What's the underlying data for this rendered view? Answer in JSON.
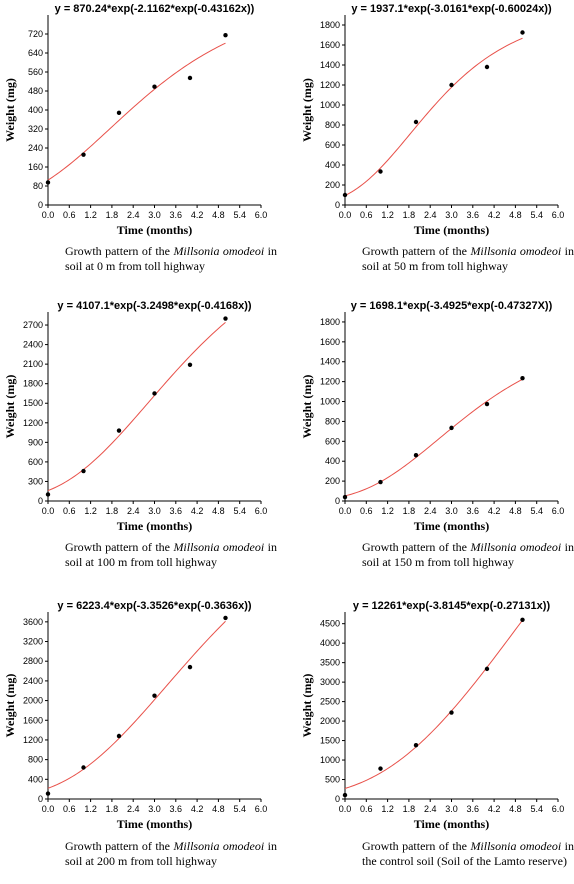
{
  "chart_data": [
    {
      "type": "scatter",
      "title": "y = 870.24*exp(-2.1162*exp(-0.43162x))",
      "xlabel": "Time (months)",
      "ylabel": "Weight  (mg)",
      "xlim": [
        0,
        6
      ],
      "ylim": [
        0,
        800
      ],
      "xticks": [
        "0.0",
        "0.6",
        "1.2",
        "1.8",
        "2.4",
        "3.0",
        "3.6",
        "4.2",
        "4.8",
        "5.4",
        "6.0"
      ],
      "yticks": [
        "0",
        "80",
        "160",
        "240",
        "320",
        "400",
        "480",
        "560",
        "640",
        "720"
      ],
      "points": {
        "x": [
          0,
          1,
          2,
          3,
          4,
          5
        ],
        "y": [
          95,
          212,
          388,
          498,
          535,
          715
        ]
      },
      "fit": {
        "a": 870.24,
        "b": 2.1162,
        "c": 0.43162,
        "color": "#e8514a"
      },
      "caption": {
        "pre": "Growth pattern of the ",
        "species": "Millsonia omodeoi",
        "post": " in soil at 0 m from toll highway"
      }
    },
    {
      "type": "scatter",
      "title": "y = 1937.1*exp(-3.0161*exp(-0.60024x))",
      "xlabel": "Time (months)",
      "ylabel": "Weight  (mg)",
      "xlim": [
        0,
        6
      ],
      "ylim": [
        0,
        1900
      ],
      "xticks": [
        "0.0",
        "0.6",
        "1.2",
        "1.8",
        "2.4",
        "3.0",
        "3.6",
        "4.2",
        "4.8",
        "5.4",
        "6.0"
      ],
      "yticks": [
        "0",
        "200",
        "400",
        "600",
        "800",
        "1000",
        "1200",
        "1400",
        "1600",
        "1800"
      ],
      "points": {
        "x": [
          0,
          1,
          2,
          3,
          4,
          5
        ],
        "y": [
          100,
          335,
          830,
          1200,
          1380,
          1725
        ]
      },
      "fit": {
        "a": 1937.1,
        "b": 3.0161,
        "c": 0.60024,
        "color": "#e8514a"
      },
      "caption": {
        "pre": "Growth pattern of the ",
        "species": "Millsonia omodeoi",
        "post": " in soil at 50 m from toll highway"
      }
    },
    {
      "type": "scatter",
      "title": "y = 4107.1*exp(-3.2498*exp(-0.4168x))",
      "xlabel": "Time (months)",
      "ylabel": "Weight  (mg)",
      "xlim": [
        0,
        6
      ],
      "ylim": [
        0,
        2900
      ],
      "xticks": [
        "0.0",
        "0.6",
        "1.2",
        "1.8",
        "2.4",
        "3.0",
        "3.6",
        "4.2",
        "4.8",
        "5.4",
        "6.0"
      ],
      "yticks": [
        "0",
        "300",
        "600",
        "900",
        "1200",
        "1500",
        "1800",
        "2100",
        "2400",
        "2700"
      ],
      "points": {
        "x": [
          0,
          1,
          2,
          3,
          4,
          5
        ],
        "y": [
          100,
          460,
          1080,
          1650,
          2090,
          2800
        ]
      },
      "fit": {
        "a": 4107.1,
        "b": 3.2498,
        "c": 0.4168,
        "color": "#e8514a"
      },
      "caption": {
        "pre": "Growth pattern of the ",
        "species": "Millsonia omodeoi",
        "post": " in soil at 100 m from toll highway"
      }
    },
    {
      "type": "scatter",
      "title": "y = 1698.1*exp(-3.4925*exp(-0.47327X))",
      "xlabel": "Time (months)",
      "ylabel": "Weight  (mg)",
      "xlim": [
        0,
        6
      ],
      "ylim": [
        0,
        1900
      ],
      "xticks": [
        "0.0",
        "0.6",
        "1.2",
        "1.8",
        "2.4",
        "3.0",
        "3.6",
        "4.2",
        "4.8",
        "5.4",
        "6.0"
      ],
      "yticks": [
        "0",
        "200",
        "400",
        "600",
        "800",
        "1000",
        "1200",
        "1400",
        "1600",
        "1800"
      ],
      "points": {
        "x": [
          0,
          1,
          2,
          3,
          4,
          5
        ],
        "y": [
          40,
          190,
          460,
          735,
          975,
          1235
        ]
      },
      "fit": {
        "a": 1698.1,
        "b": 3.4925,
        "c": 0.47327,
        "color": "#e8514a"
      },
      "caption": {
        "pre": "Growth pattern of the ",
        "species": "Millsonia omodeoi",
        "post": " in soil at 150 m from toll highway"
      }
    },
    {
      "type": "scatter",
      "title": "y = 6223.4*exp(-3.3526*exp(-0.3636x))",
      "xlabel": "Time (months)",
      "ylabel": "Weight  (mg)",
      "xlim": [
        0,
        6
      ],
      "ylim": [
        0,
        3800
      ],
      "xticks": [
        "0.0",
        "0.6",
        "1.2",
        "1.8",
        "2.4",
        "3.0",
        "3.6",
        "4.2",
        "4.8",
        "5.4",
        "6.0"
      ],
      "yticks": [
        "0",
        "400",
        "800",
        "1200",
        "1600",
        "2000",
        "2400",
        "2800",
        "3200",
        "3600"
      ],
      "points": {
        "x": [
          0,
          1,
          2,
          3,
          4,
          5
        ],
        "y": [
          110,
          640,
          1280,
          2100,
          2680,
          3680
        ]
      },
      "fit": {
        "a": 6223.4,
        "b": 3.3526,
        "c": 0.3636,
        "color": "#e8514a"
      },
      "caption": {
        "pre": "Growth pattern of the ",
        "species": "Millsonia omodeoi",
        "post": " in soil at 200 m from toll highway"
      }
    },
    {
      "type": "scatter",
      "title": "y = 12261*exp(-3.8145*exp(-0.27131x))",
      "xlabel": "Time (months)",
      "ylabel": "Weight  (mg)",
      "xlim": [
        0,
        6
      ],
      "ylim": [
        0,
        4800
      ],
      "xticks": [
        "0.0",
        "0.6",
        "1.2",
        "1.8",
        "2.4",
        "3.0",
        "3.6",
        "4.2",
        "4.8",
        "5.4",
        "6.0"
      ],
      "yticks": [
        "0",
        "500",
        "1000",
        "1500",
        "2000",
        "2500",
        "3000",
        "3500",
        "4000",
        "4500"
      ],
      "points": {
        "x": [
          0,
          1,
          2,
          3,
          4,
          5
        ],
        "y": [
          100,
          780,
          1380,
          2220,
          3340,
          4600
        ]
      },
      "fit": {
        "a": 12261,
        "b": 3.8145,
        "c": 0.27131,
        "color": "#e8514a"
      },
      "caption": {
        "pre": "Growth pattern of the ",
        "species": "Millsonia omodeoi",
        "post": " in the control soil (Soil of the Lamto reserve)"
      }
    }
  ]
}
